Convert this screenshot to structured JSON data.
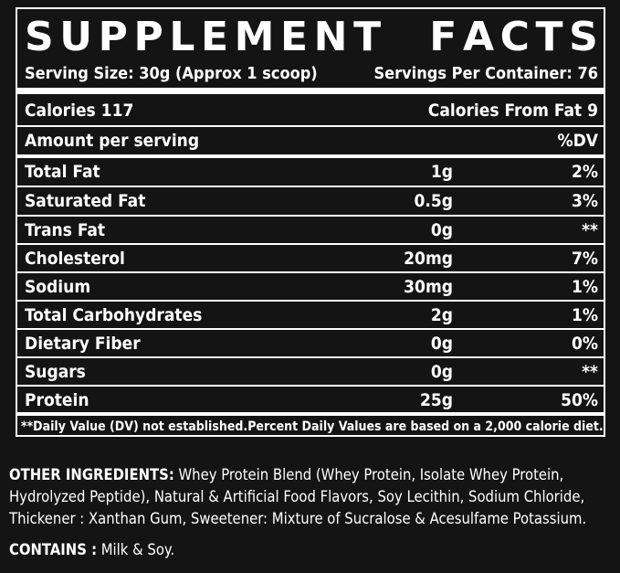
{
  "title": [
    "S",
    "U",
    "P",
    "P",
    "L",
    "E",
    "M",
    "E",
    "N",
    "T",
    " ",
    "F",
    "A",
    "C",
    "T",
    "S"
  ],
  "serving_size": "Serving Size: 30g  (Approx 1 scoop)",
  "servings_per_container": "Servings Per Container: 76",
  "calories": "Calories 117",
  "calories_from_fat": "Calories From Fat 9",
  "amount_header": "Amount per serving",
  "dv_header": "%DV",
  "rows": [
    {
      "name": "Total Fat",
      "amount": "1g",
      "dv": "2%"
    },
    {
      "name": "Saturated Fat",
      "amount": "0.5g",
      "dv": "3%"
    },
    {
      "name": "Trans Fat",
      "amount": "0g",
      "dv": "**"
    },
    {
      "name": "Cholesterol",
      "amount": "20mg",
      "dv": "7%"
    },
    {
      "name": "Sodium",
      "amount": "30mg",
      "dv": "1%"
    },
    {
      "name": "Total Carbohydrates",
      "amount": "2g",
      "dv": "1%"
    },
    {
      "name": "Dietary Fiber",
      "amount": "0g",
      "dv": "0%"
    },
    {
      "name": "Sugars",
      "amount": "0g",
      "dv": "**"
    },
    {
      "name": "Protein",
      "amount": "25g",
      "dv": "50%"
    }
  ],
  "footnote_left": "**Daily Value (DV) not established.",
  "footnote_right": "Percent Daily Values are based on a 2,000 calorie diet.",
  "other_ingredients_label": "OTHER INGREDIENTS:",
  "other_ingredients_text": " Whey Protein Blend (Whey Protein, Isolate Whey Protein, Hydrolyzed Peptide), Natural & Artificial Food Flavors, Soy Lecithin, Sodium Chloride, Thickener : Xanthan Gum, Sweetener: Mixture of Sucralose & Acesulfame Potassium.",
  "contains_label": "CONTAINS :",
  "contains_text": " Milk & Soy."
}
